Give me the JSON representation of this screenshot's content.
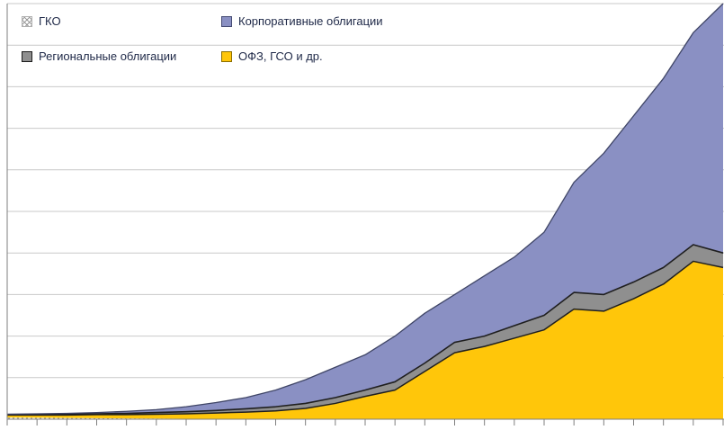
{
  "page": {
    "background": "#ffffff",
    "grid_color": "#c9c9c9",
    "axis_color": "#7f7f7f"
  },
  "legend": {
    "items": [
      {
        "label": "ГКО",
        "pattern": "hatch"
      },
      {
        "label": "Корпоративные облигации",
        "color": "#8a90c3",
        "border": "#454b73"
      },
      {
        "label": "Региональные облигации",
        "color": "#8f8f8f",
        "border": "#1a1a1a"
      },
      {
        "label": "ОФЗ, ГСО и др.",
        "color": "#ffc60a",
        "border": "#8a6d00"
      }
    ]
  },
  "chart_data": {
    "type": "area",
    "stacked": true,
    "title": "",
    "xlabel": "",
    "ylabel": "",
    "legend_position": "top-left",
    "grid": "horizontal",
    "note": "Axis tick labels are cropped out of the screenshot; y-values are estimated on a relative 0-100 scale, x is 25 evenly spaced tick positions.",
    "ylim": [
      0,
      100
    ],
    "grid_step": 10,
    "x_tick_count": 25,
    "x": [
      0,
      1,
      2,
      3,
      4,
      5,
      6,
      7,
      8,
      9,
      10,
      11,
      12,
      13,
      14,
      15,
      16,
      17,
      18,
      19,
      20,
      21,
      22,
      23,
      24
    ],
    "series": [
      {
        "name": "ГКО",
        "fill": "hatch",
        "color": "#d9d9d9",
        "values": [
          0.4,
          0.35,
          0.3,
          0.25,
          0.2,
          0.15,
          0.1,
          0.05,
          0,
          0,
          0,
          0,
          0,
          0,
          0,
          0,
          0,
          0,
          0,
          0,
          0,
          0,
          0,
          0,
          0
        ]
      },
      {
        "name": "ОФЗ, ГСО и др.",
        "fill": "solid",
        "color": "#ffc60a",
        "edge": "#1f1f1f",
        "values": [
          0.6,
          0.65,
          0.7,
          0.85,
          0.9,
          1.05,
          1.2,
          1.45,
          1.7,
          2.0,
          2.6,
          3.8,
          5.5,
          7.0,
          11.5,
          16.0,
          17.5,
          19.5,
          21.5,
          26.5,
          26.0,
          29.0,
          32.5,
          38.0,
          36.5
        ]
      },
      {
        "name": "Региональные облигации",
        "fill": "solid",
        "color": "#8f8f8f",
        "edge": "#1f1f1f",
        "values": [
          0.1,
          0.1,
          0.2,
          0.2,
          0.3,
          0.4,
          0.5,
          0.6,
          0.8,
          1.0,
          1.2,
          1.4,
          1.5,
          2.0,
          2.0,
          2.5,
          2.5,
          3.0,
          3.5,
          4.0,
          4.0,
          4.0,
          4.0,
          4.0,
          3.5
        ]
      },
      {
        "name": "Корпоративные облигации",
        "fill": "solid",
        "color": "#8a90c3",
        "edge": "#3f4566",
        "values": [
          0.1,
          0.2,
          0.2,
          0.3,
          0.5,
          0.7,
          1.2,
          1.9,
          2.7,
          4.0,
          5.7,
          7.3,
          8.5,
          11.0,
          12.0,
          11.5,
          14.5,
          16.5,
          20.0,
          26.5,
          34.0,
          40.0,
          45.5,
          51.0,
          60.0
        ]
      }
    ]
  }
}
